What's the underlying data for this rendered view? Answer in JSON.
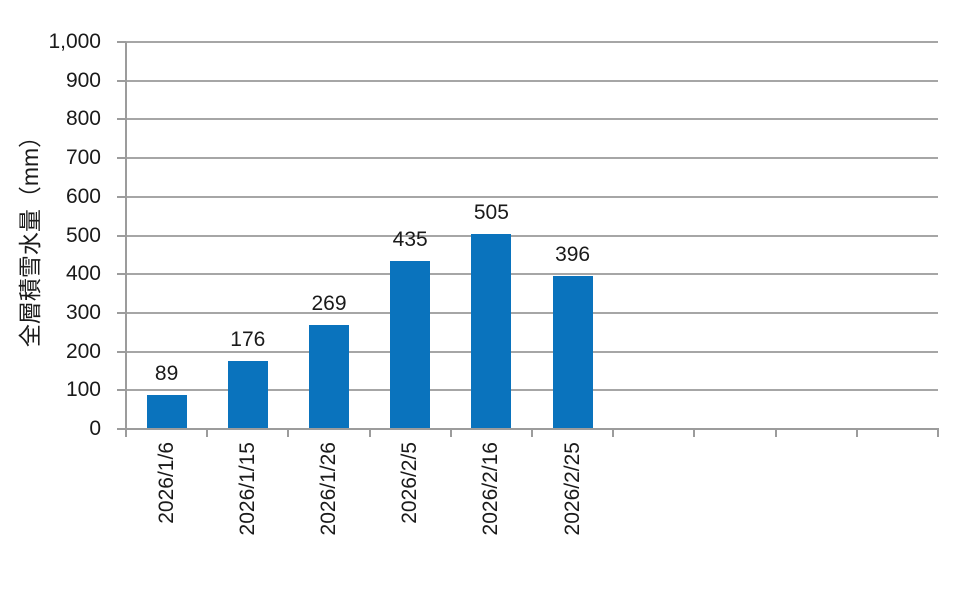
{
  "chart_data": {
    "type": "bar",
    "title": "",
    "xlabel": "",
    "ylabel": "全層積雪水量（mm）",
    "categories": [
      "2026/1/6",
      "2026/1/15",
      "2026/1/26",
      "2026/2/5",
      "2026/2/16",
      "2026/2/25"
    ],
    "values": [
      89,
      176,
      269,
      435,
      505,
      396
    ],
    "data_labels": [
      "89",
      "176",
      "269",
      "435",
      "505",
      "396"
    ],
    "ylim": [
      0,
      1000
    ],
    "ytick_step": 100,
    "ytick_labels": [
      "0",
      "100",
      "200",
      "300",
      "400",
      "500",
      "600",
      "700",
      "800",
      "900",
      "1,000"
    ],
    "total_category_slots": 10,
    "x_tick_count": 11,
    "grid": "horizontal-on",
    "legend_position": "none",
    "bar_color": "#0a73bd",
    "gridline_color": "#a6a6a6",
    "axis_color": "#9c9c9c",
    "text_color": "#1a1a1a"
  }
}
